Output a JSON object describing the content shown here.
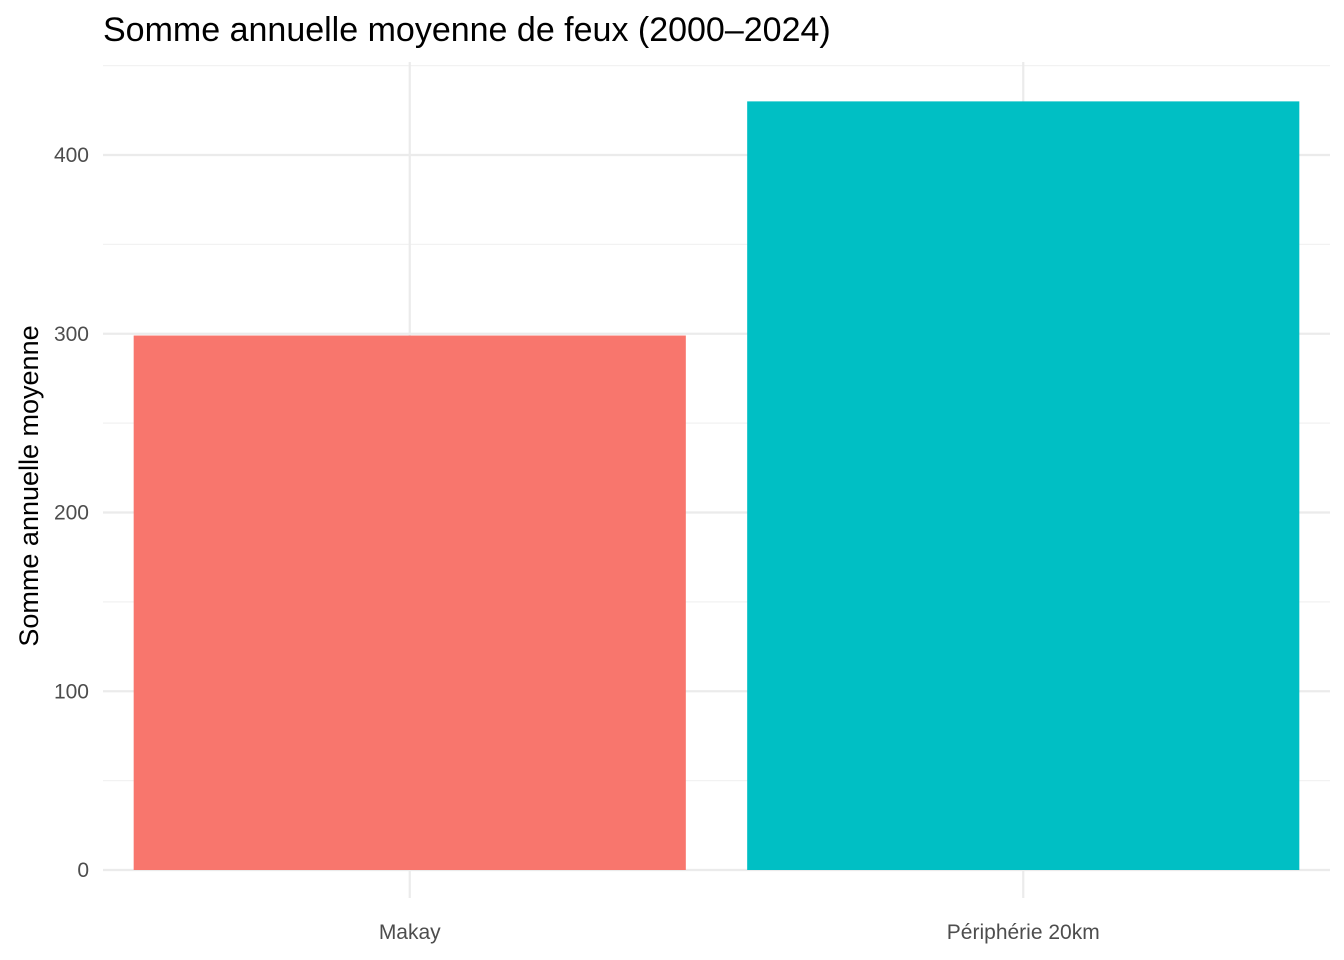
{
  "chart_data": {
    "type": "bar",
    "title": "Somme annuelle moyenne de feux (2000–2024)",
    "xlabel": "",
    "ylabel": "Somme annuelle moyenne",
    "categories": [
      "Makay",
      "Périphérie 20km"
    ],
    "values": [
      299,
      430
    ],
    "colors": [
      "#F8766D",
      "#00BFC4"
    ],
    "ylim": [
      0,
      450
    ],
    "yticks": [
      0,
      100,
      200,
      300,
      400
    ],
    "grid": true,
    "legend": "none"
  }
}
